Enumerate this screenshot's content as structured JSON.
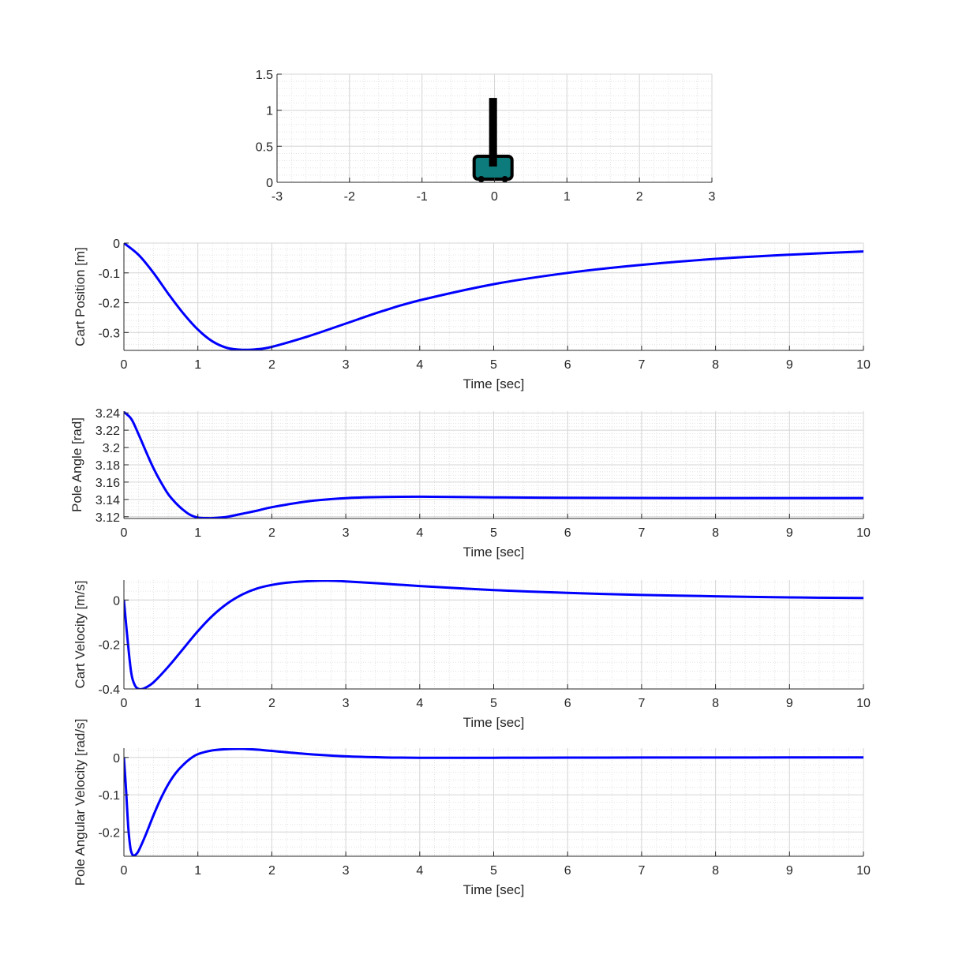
{
  "figure": {
    "background": "#ffffff"
  },
  "chart_data": [
    {
      "type": "animation-frame",
      "name": "cart-pole",
      "x_ticks": [
        -3,
        -2,
        -1,
        0,
        1,
        2,
        3
      ],
      "y_ticks": [
        0,
        0.5,
        1,
        1.5
      ],
      "y_tick_labels": [
        "0",
        "0.5",
        "1",
        "1.5"
      ],
      "xlim": [
        -3,
        3
      ],
      "ylim": [
        0,
        1.5
      ],
      "grid": true,
      "minor_grid": true,
      "cart": {
        "x": -0.02,
        "color": "#0d7b7b",
        "outline": "#000000"
      },
      "pole": {
        "x": -0.02,
        "y_top": 1.17,
        "color": "#000000"
      }
    },
    {
      "type": "line",
      "name": "cart-position",
      "xlabel": "Time [sec]",
      "ylabel": "Cart Position [m]",
      "xlim": [
        0,
        10
      ],
      "ylim": [
        -0.36,
        0.0
      ],
      "x_ticks": [
        0,
        1,
        2,
        3,
        4,
        5,
        6,
        7,
        8,
        9,
        10
      ],
      "y_ticks": [
        0,
        -0.1,
        -0.2,
        -0.3
      ],
      "y_tick_labels": [
        "0",
        "-0.1",
        "-0.2",
        "-0.3"
      ],
      "grid": true,
      "line_color": "#0000ff",
      "x": [
        0,
        0.2,
        0.4,
        0.6,
        0.8,
        1.0,
        1.2,
        1.4,
        1.6,
        1.8,
        2.0,
        2.5,
        3.0,
        3.5,
        4.0,
        5.0,
        6.0,
        7.0,
        8.0,
        9.0,
        10.0
      ],
      "y": [
        0,
        -0.04,
        -0.1,
        -0.17,
        -0.235,
        -0.29,
        -0.33,
        -0.352,
        -0.358,
        -0.356,
        -0.348,
        -0.312,
        -0.27,
        -0.228,
        -0.192,
        -0.138,
        -0.1,
        -0.073,
        -0.053,
        -0.039,
        -0.028
      ]
    },
    {
      "type": "line",
      "name": "pole-angle",
      "xlabel": "Time [sec]",
      "ylabel": "Pole Angle [rad]",
      "xlim": [
        0,
        10
      ],
      "ylim": [
        3.118,
        3.242
      ],
      "x_ticks": [
        0,
        1,
        2,
        3,
        4,
        5,
        6,
        7,
        8,
        9,
        10
      ],
      "y_ticks": [
        3.24,
        3.22,
        3.2,
        3.18,
        3.16,
        3.14,
        3.12
      ],
      "y_tick_labels": [
        "3.24",
        "3.22",
        "3.2",
        "3.18",
        "3.16",
        "3.14",
        "3.12"
      ],
      "grid": true,
      "line_color": "#0000ff",
      "x": [
        0,
        0.1,
        0.2,
        0.3,
        0.4,
        0.5,
        0.6,
        0.7,
        0.8,
        0.9,
        1.0,
        1.1,
        1.2,
        1.4,
        1.6,
        1.8,
        2.0,
        2.5,
        3.0,
        3.5,
        4.0,
        4.5,
        5.0,
        6.0,
        7.0,
        8.0,
        9.0,
        10.0
      ],
      "y": [
        3.241,
        3.233,
        3.215,
        3.195,
        3.176,
        3.16,
        3.146,
        3.136,
        3.128,
        3.122,
        3.119,
        3.1185,
        3.1185,
        3.12,
        3.1235,
        3.127,
        3.131,
        3.138,
        3.1415,
        3.1428,
        3.1432,
        3.1428,
        3.1424,
        3.1419,
        3.1417,
        3.1416,
        3.1416,
        3.1416
      ]
    },
    {
      "type": "line",
      "name": "cart-velocity",
      "xlabel": "Time [sec]",
      "ylabel": "Cart Velocity [m/s]",
      "xlim": [
        0,
        10
      ],
      "ylim": [
        -0.4,
        0.09
      ],
      "x_ticks": [
        0,
        1,
        2,
        3,
        4,
        5,
        6,
        7,
        8,
        9,
        10
      ],
      "y_ticks": [
        0,
        -0.2,
        -0.4
      ],
      "y_tick_labels": [
        "0",
        "-0.2",
        "-0.4"
      ],
      "grid": true,
      "line_color": "#0000ff",
      "x": [
        0,
        0.05,
        0.1,
        0.15,
        0.2,
        0.25,
        0.3,
        0.4,
        0.6,
        0.8,
        1.0,
        1.2,
        1.4,
        1.6,
        1.8,
        2.0,
        2.2,
        2.5,
        2.75,
        3.0,
        3.5,
        4.0,
        5.0,
        6.0,
        7.0,
        8.0,
        9.0,
        10.0
      ],
      "y": [
        0,
        -0.18,
        -0.33,
        -0.385,
        -0.4,
        -0.4,
        -0.393,
        -0.37,
        -0.3,
        -0.22,
        -0.14,
        -0.07,
        -0.015,
        0.025,
        0.052,
        0.068,
        0.078,
        0.085,
        0.087,
        0.084,
        0.074,
        0.063,
        0.045,
        0.032,
        0.023,
        0.017,
        0.012,
        0.009
      ]
    },
    {
      "type": "line",
      "name": "pole-angular-velocity",
      "xlabel": "Time [sec]",
      "ylabel": "Pole Angular Velocity [rad/s]",
      "xlim": [
        0,
        10
      ],
      "ylim": [
        -0.265,
        0.025
      ],
      "x_ticks": [
        0,
        1,
        2,
        3,
        4,
        5,
        6,
        7,
        8,
        9,
        10
      ],
      "y_ticks": [
        0,
        -0.1,
        -0.2
      ],
      "y_tick_labels": [
        "0",
        "-0.1",
        "-0.2"
      ],
      "grid": true,
      "line_color": "#0000ff",
      "x": [
        0,
        0.03,
        0.06,
        0.09,
        0.12,
        0.15,
        0.2,
        0.3,
        0.4,
        0.5,
        0.6,
        0.7,
        0.8,
        0.9,
        1.0,
        1.2,
        1.4,
        1.6,
        1.8,
        2.0,
        2.5,
        3.0,
        3.5,
        4.0,
        5.0,
        6.0,
        7.0,
        8.0,
        9.0,
        10.0
      ],
      "y": [
        0,
        -0.09,
        -0.19,
        -0.245,
        -0.262,
        -0.262,
        -0.25,
        -0.205,
        -0.155,
        -0.11,
        -0.072,
        -0.042,
        -0.02,
        -0.003,
        0.009,
        0.019,
        0.0225,
        0.023,
        0.021,
        0.0175,
        0.009,
        0.003,
        0.0002,
        -0.0008,
        -0.0008,
        -0.0004,
        -0.0002,
        -0.0001,
        0,
        0
      ]
    }
  ]
}
